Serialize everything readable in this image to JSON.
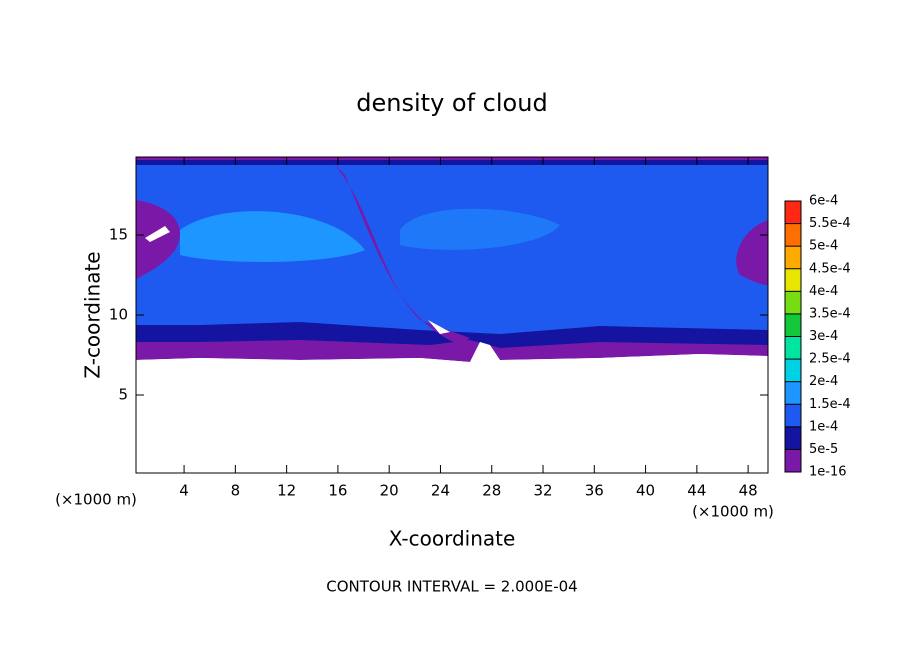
{
  "chart_data": {
    "type": "contour",
    "title": "density of cloud",
    "x_label": "X-coordinate",
    "y_label": "Z-coordinate",
    "x_unit": "(×1000 m)",
    "y_unit": "(×1000 m)",
    "annotation": "CONTOUR INTERVAL = 2.000E-04",
    "xlim": [
      0.25,
      49.55
    ],
    "xticks": [
      4,
      8,
      12,
      16,
      20,
      24,
      28,
      32,
      36,
      40,
      44,
      48
    ],
    "ylim": [
      0.125,
      19.875
    ],
    "yticks": [
      5,
      10,
      15
    ],
    "colorbar": {
      "levels": [
        {
          "value": 1e-16,
          "label": "1e-16"
        },
        {
          "value": 5e-05,
          "label": "5e-5"
        },
        {
          "value": 0.0001,
          "label": "1e-4"
        },
        {
          "value": 0.00015,
          "label": "1.5e-4"
        },
        {
          "value": 0.0002,
          "label": "2e-4"
        },
        {
          "value": 0.00025,
          "label": "2.5e-4"
        },
        {
          "value": 0.0003,
          "label": "3e-4"
        },
        {
          "value": 0.00035,
          "label": "3.5e-4"
        },
        {
          "value": 0.0004,
          "label": "4e-4"
        },
        {
          "value": 0.00045,
          "label": "4.5e-4"
        },
        {
          "value": 0.0005,
          "label": "5e-4"
        },
        {
          "value": 0.00055,
          "label": "5.5e-4"
        },
        {
          "value": 0.0006,
          "label": "6e-4"
        }
      ],
      "colors": [
        "#7a18a8",
        "#1414a0",
        "#1e5af0",
        "#1e96ff",
        "#00d2e6",
        "#00e6a0",
        "#14c83c",
        "#78dc14",
        "#e6e600",
        "#ffaa00",
        "#ff6e00",
        "#ff2814"
      ]
    }
  }
}
